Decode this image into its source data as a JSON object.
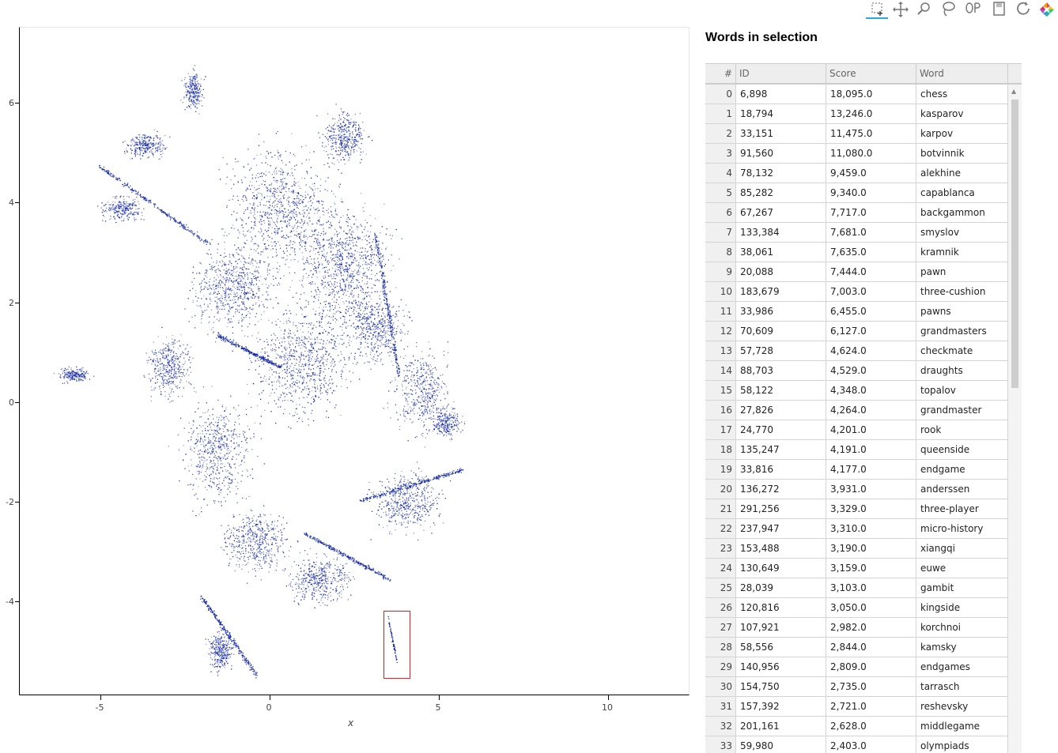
{
  "toolbar": {
    "tools": [
      {
        "name": "box-select-icon",
        "active": true
      },
      {
        "name": "pan-icon",
        "active": false
      },
      {
        "name": "zoom-icon",
        "active": false
      },
      {
        "name": "lasso-icon",
        "active": false
      },
      {
        "name": "hover-icon",
        "active": false
      },
      {
        "name": "save-icon",
        "active": false
      },
      {
        "name": "reset-icon",
        "active": false
      },
      {
        "name": "bokeh-logo-icon",
        "active": false
      }
    ]
  },
  "plot": {
    "xlabel": "x",
    "x_ticks": [
      "-5",
      "0",
      "5",
      "10"
    ],
    "y_ticks": [
      "6",
      "4",
      "2",
      "0",
      "-2",
      "-4"
    ],
    "point_color": "#0a1fa0",
    "selection_color": "#e02020"
  },
  "table": {
    "title": "Words in selection",
    "columns": [
      "#",
      "ID",
      "Score",
      "Word"
    ],
    "rows": [
      [
        "0",
        "6,898",
        "18,095.0",
        "chess"
      ],
      [
        "1",
        "18,794",
        "13,246.0",
        "kasparov"
      ],
      [
        "2",
        "33,151",
        "11,475.0",
        "karpov"
      ],
      [
        "3",
        "91,560",
        "11,080.0",
        "botvinnik"
      ],
      [
        "4",
        "78,132",
        "9,459.0",
        "alekhine"
      ],
      [
        "5",
        "85,282",
        "9,340.0",
        "capablanca"
      ],
      [
        "6",
        "67,267",
        "7,717.0",
        "backgammon"
      ],
      [
        "7",
        "133,384",
        "7,681.0",
        "smyslov"
      ],
      [
        "8",
        "38,061",
        "7,635.0",
        "kramnik"
      ],
      [
        "9",
        "20,088",
        "7,444.0",
        "pawn"
      ],
      [
        "10",
        "183,679",
        "7,003.0",
        "three-cushion"
      ],
      [
        "11",
        "33,986",
        "6,455.0",
        "pawns"
      ],
      [
        "12",
        "70,609",
        "6,127.0",
        "grandmasters"
      ],
      [
        "13",
        "57,728",
        "4,624.0",
        "checkmate"
      ],
      [
        "14",
        "88,703",
        "4,529.0",
        "draughts"
      ],
      [
        "15",
        "58,122",
        "4,348.0",
        "topalov"
      ],
      [
        "16",
        "27,826",
        "4,264.0",
        "grandmaster"
      ],
      [
        "17",
        "24,770",
        "4,201.0",
        "rook"
      ],
      [
        "18",
        "135,247",
        "4,191.0",
        "queenside"
      ],
      [
        "19",
        "33,816",
        "4,177.0",
        "endgame"
      ],
      [
        "20",
        "136,272",
        "3,931.0",
        "anderssen"
      ],
      [
        "21",
        "291,256",
        "3,329.0",
        "three-player"
      ],
      [
        "22",
        "237,947",
        "3,310.0",
        "micro-history"
      ],
      [
        "23",
        "153,488",
        "3,190.0",
        "xiangqi"
      ],
      [
        "24",
        "130,649",
        "3,159.0",
        "euwe"
      ],
      [
        "25",
        "28,039",
        "3,103.0",
        "gambit"
      ],
      [
        "26",
        "120,816",
        "3,050.0",
        "kingside"
      ],
      [
        "27",
        "107,921",
        "2,982.0",
        "korchnoi"
      ],
      [
        "28",
        "58,556",
        "2,844.0",
        "kamsky"
      ],
      [
        "29",
        "140,956",
        "2,809.0",
        "endgames"
      ],
      [
        "30",
        "154,750",
        "2,735.0",
        "tarrasch"
      ],
      [
        "31",
        "157,392",
        "2,721.0",
        "reshevsky"
      ],
      [
        "32",
        "201,161",
        "2,628.0",
        "middlegame"
      ],
      [
        "33",
        "59,980",
        "2,403.0",
        "olympiads"
      ]
    ]
  }
}
